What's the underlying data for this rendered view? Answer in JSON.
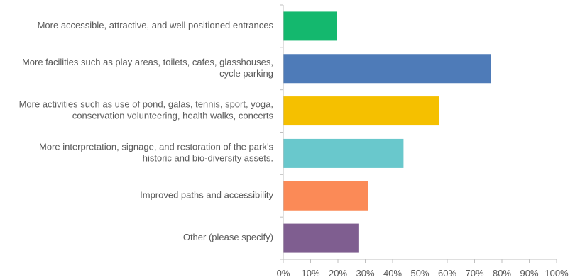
{
  "chart_data": {
    "type": "bar",
    "orientation": "horizontal",
    "categories": [
      [
        "More accessible, attractive, and well positioned entrances"
      ],
      [
        "More facilities such as play areas, toilets, cafes, glasshouses,",
        "cycle parking"
      ],
      [
        "More activities such as use of pond, galas, tennis, sport, yoga,",
        "conservation volunteering, health walks, concerts"
      ],
      [
        "More interpretation, signage, and restoration of the park’s",
        "historic and bio-diversity assets."
      ],
      [
        "Improved paths and accessibility"
      ],
      [
        "Other (please specify)"
      ]
    ],
    "values": [
      19.5,
      76,
      57,
      44,
      31,
      27.5
    ],
    "colors": [
      "#14b86e",
      "#4e7bb8",
      "#f5c000",
      "#69c8cc",
      "#fb8a57",
      "#7f5e90"
    ],
    "xlim": [
      0,
      100
    ],
    "xticks": [
      "0%",
      "10%",
      "20%",
      "30%",
      "40%",
      "50%",
      "60%",
      "70%",
      "80%",
      "90%",
      "100%"
    ],
    "grid": false,
    "legend": "none",
    "title": "",
    "xlabel": "",
    "ylabel": ""
  }
}
